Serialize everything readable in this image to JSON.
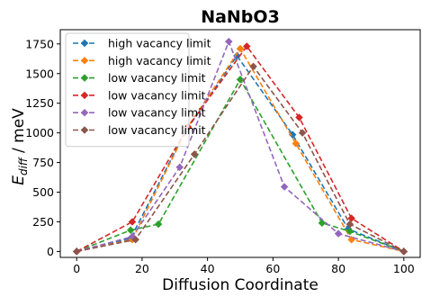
{
  "chart_data": {
    "type": "line",
    "title": "NaNbO3",
    "xlabel": "Diffusion Coordinate",
    "ylabel_main": "E",
    "ylabel_sub": "diff",
    "ylabel_unit": " / meV",
    "xlim": [
      -5,
      105
    ],
    "ylim": [
      -50,
      1870
    ],
    "xticks": [
      0,
      20,
      40,
      60,
      80,
      100
    ],
    "yticks": [
      0,
      250,
      500,
      750,
      1000,
      1250,
      1500,
      1750
    ],
    "grid": false,
    "legend_position": "upper-left",
    "series": [
      {
        "name": "high vacancy limit",
        "color": "#1f77b4",
        "x": [
          0,
          16.5,
          33,
          49,
          66,
          83,
          100
        ],
        "y": [
          0,
          110,
          1000,
          1650,
          985,
          190,
          0
        ]
      },
      {
        "name": "high vacancy limit",
        "color": "#ff7f0e",
        "x": [
          0,
          17,
          34,
          50,
          67,
          84,
          100
        ],
        "y": [
          0,
          100,
          1050,
          1710,
          910,
          100,
          0
        ]
      },
      {
        "name": "low vacancy limit",
        "color": "#2ca02c",
        "x": [
          0,
          16.5,
          25,
          50,
          75,
          83.5,
          100
        ],
        "y": [
          0,
          180,
          230,
          1450,
          240,
          170,
          0
        ]
      },
      {
        "name": "low vacancy limit",
        "color": "#d62728",
        "x": [
          0,
          17,
          34,
          52,
          68,
          84,
          100
        ],
        "y": [
          0,
          250,
          1050,
          1730,
          1130,
          280,
          0
        ]
      },
      {
        "name": "low vacancy limit",
        "color": "#9467bd",
        "x": [
          0,
          17,
          31.5,
          46.5,
          63.5,
          80,
          100
        ],
        "y": [
          0,
          125,
          710,
          1770,
          545,
          150,
          0
        ]
      },
      {
        "name": "low vacancy limit",
        "color": "#8c564b",
        "x": [
          0,
          18,
          36,
          54,
          69,
          83.5,
          100
        ],
        "y": [
          0,
          100,
          820,
          1560,
          1000,
          230,
          0
        ]
      }
    ]
  }
}
